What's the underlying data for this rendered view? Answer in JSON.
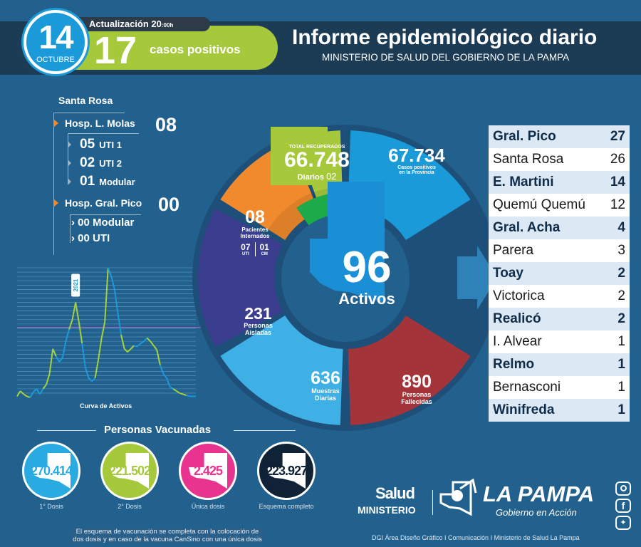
{
  "header": {
    "day": "14",
    "month": "OCTUBRE",
    "update_label": "Actualización 20",
    "update_time_suffix": ":00h",
    "new_cases": "17",
    "new_cases_label": "casos positivos",
    "title": "Informe epidemiológico diario",
    "subtitle": "MINISTERIO DE SALUD DEL GOBIERNO DE LA PAMPA"
  },
  "hospitals": {
    "city": "Santa Rosa",
    "items": [
      {
        "name": "Hosp. L. Molas",
        "total": "08",
        "sub": [
          {
            "n": "05",
            "label": "UTI 1"
          },
          {
            "n": "02",
            "label": "UTI 2"
          },
          {
            "n": "01",
            "label": "Modular"
          }
        ]
      },
      {
        "name": "Hosp. Gral. Pico",
        "total": "00",
        "sub": [
          {
            "n": "00",
            "label": "Modular"
          },
          {
            "n": "00",
            "label": "UTI"
          }
        ]
      }
    ]
  },
  "wheel": {
    "recovered": {
      "caption": "TOTAL RECUPERADOS",
      "value": "66.748",
      "daily_label": "Diarios",
      "daily": "02"
    },
    "positives": {
      "value": "67.734",
      "line1": "Casos positivos",
      "line2": "en la Provincia"
    },
    "hospitalized": {
      "value": "08",
      "line1": "Pacientes",
      "line2": "Internados",
      "uti": "07",
      "uti_label": "UTI",
      "cm": "01",
      "cm_label": "CM"
    },
    "isolated": {
      "value": "231",
      "line1": "Personas",
      "line2": "Aisladas"
    },
    "samples": {
      "value": "636",
      "line1": "Muestras",
      "line2": "Diarias"
    },
    "deaths": {
      "value": "890",
      "line1": "Personas",
      "line2": "Fallecidas"
    },
    "active": {
      "value": "96",
      "label": "Activos"
    }
  },
  "localities": [
    {
      "name": "Gral. Pico",
      "count": "27",
      "bold": true
    },
    {
      "name": "Santa Rosa",
      "count": "26",
      "bold": false
    },
    {
      "name": "E. Martini",
      "count": "14",
      "bold": true
    },
    {
      "name": "Quemú Quemú",
      "count": "12",
      "bold": false
    },
    {
      "name": "Gral. Acha",
      "count": "4",
      "bold": true
    },
    {
      "name": "Parera",
      "count": "3",
      "bold": false
    },
    {
      "name": "Toay",
      "count": "2",
      "bold": true
    },
    {
      "name": "Victorica",
      "count": "2",
      "bold": false
    },
    {
      "name": "Realicó",
      "count": "2",
      "bold": true
    },
    {
      "name": "I. Alvear",
      "count": "1",
      "bold": false
    },
    {
      "name": "Relmo",
      "count": "1",
      "bold": true
    },
    {
      "name": "Bernasconi",
      "count": "1",
      "bold": false
    },
    {
      "name": "Winifreda",
      "count": "1",
      "bold": true
    }
  ],
  "chart_data": {
    "type": "line",
    "title": "Curva de Activos",
    "annotation": "2021",
    "xlabel": "",
    "ylabel": "",
    "ylim": [
      0,
      100
    ],
    "values": [
      1,
      6,
      3,
      1,
      0,
      5,
      8,
      3,
      8,
      12,
      22,
      45,
      38,
      33,
      37,
      52,
      63,
      72,
      88,
      70,
      50,
      28,
      18,
      15,
      18,
      35,
      55,
      70,
      120,
      112,
      100,
      78,
      58,
      45,
      42,
      45,
      48,
      47,
      50,
      52,
      55,
      52,
      48,
      44,
      30,
      22,
      18,
      10,
      8,
      6,
      4,
      3,
      2,
      1,
      1,
      1
    ],
    "segment_colors": [
      "#a5d13b",
      "#1a9ad8"
    ],
    "threshold_color": "#b06bd3"
  },
  "vaccination": {
    "title": "Personas Vacunadas",
    "items": [
      {
        "value": "270.414",
        "label": "1° Dosis",
        "color": "#29abe2"
      },
      {
        "value": "221.502",
        "label": "2° Dosis",
        "color": "#a6c93c"
      },
      {
        "value": "2.425",
        "label": "Única dosis",
        "color": "#e8338f"
      },
      {
        "value": "223.927",
        "label": "Esquema completo",
        "color": "#0f2236"
      }
    ],
    "note": "El esquema de vacunación se completa con la colocación de dos dosis y en caso de la vacuna CanSino con una única dosis"
  },
  "footer": {
    "salud": "Salud",
    "ministerio": "MINISTERIO",
    "brand": "LA PAMPA",
    "tagline": "Gobierno en Acción",
    "credits": "DGI Área Diseño Gráfico  I Comunicación I Ministerio de Salud La Pampa",
    "social": [
      "instagram",
      "facebook",
      "twitter"
    ]
  }
}
